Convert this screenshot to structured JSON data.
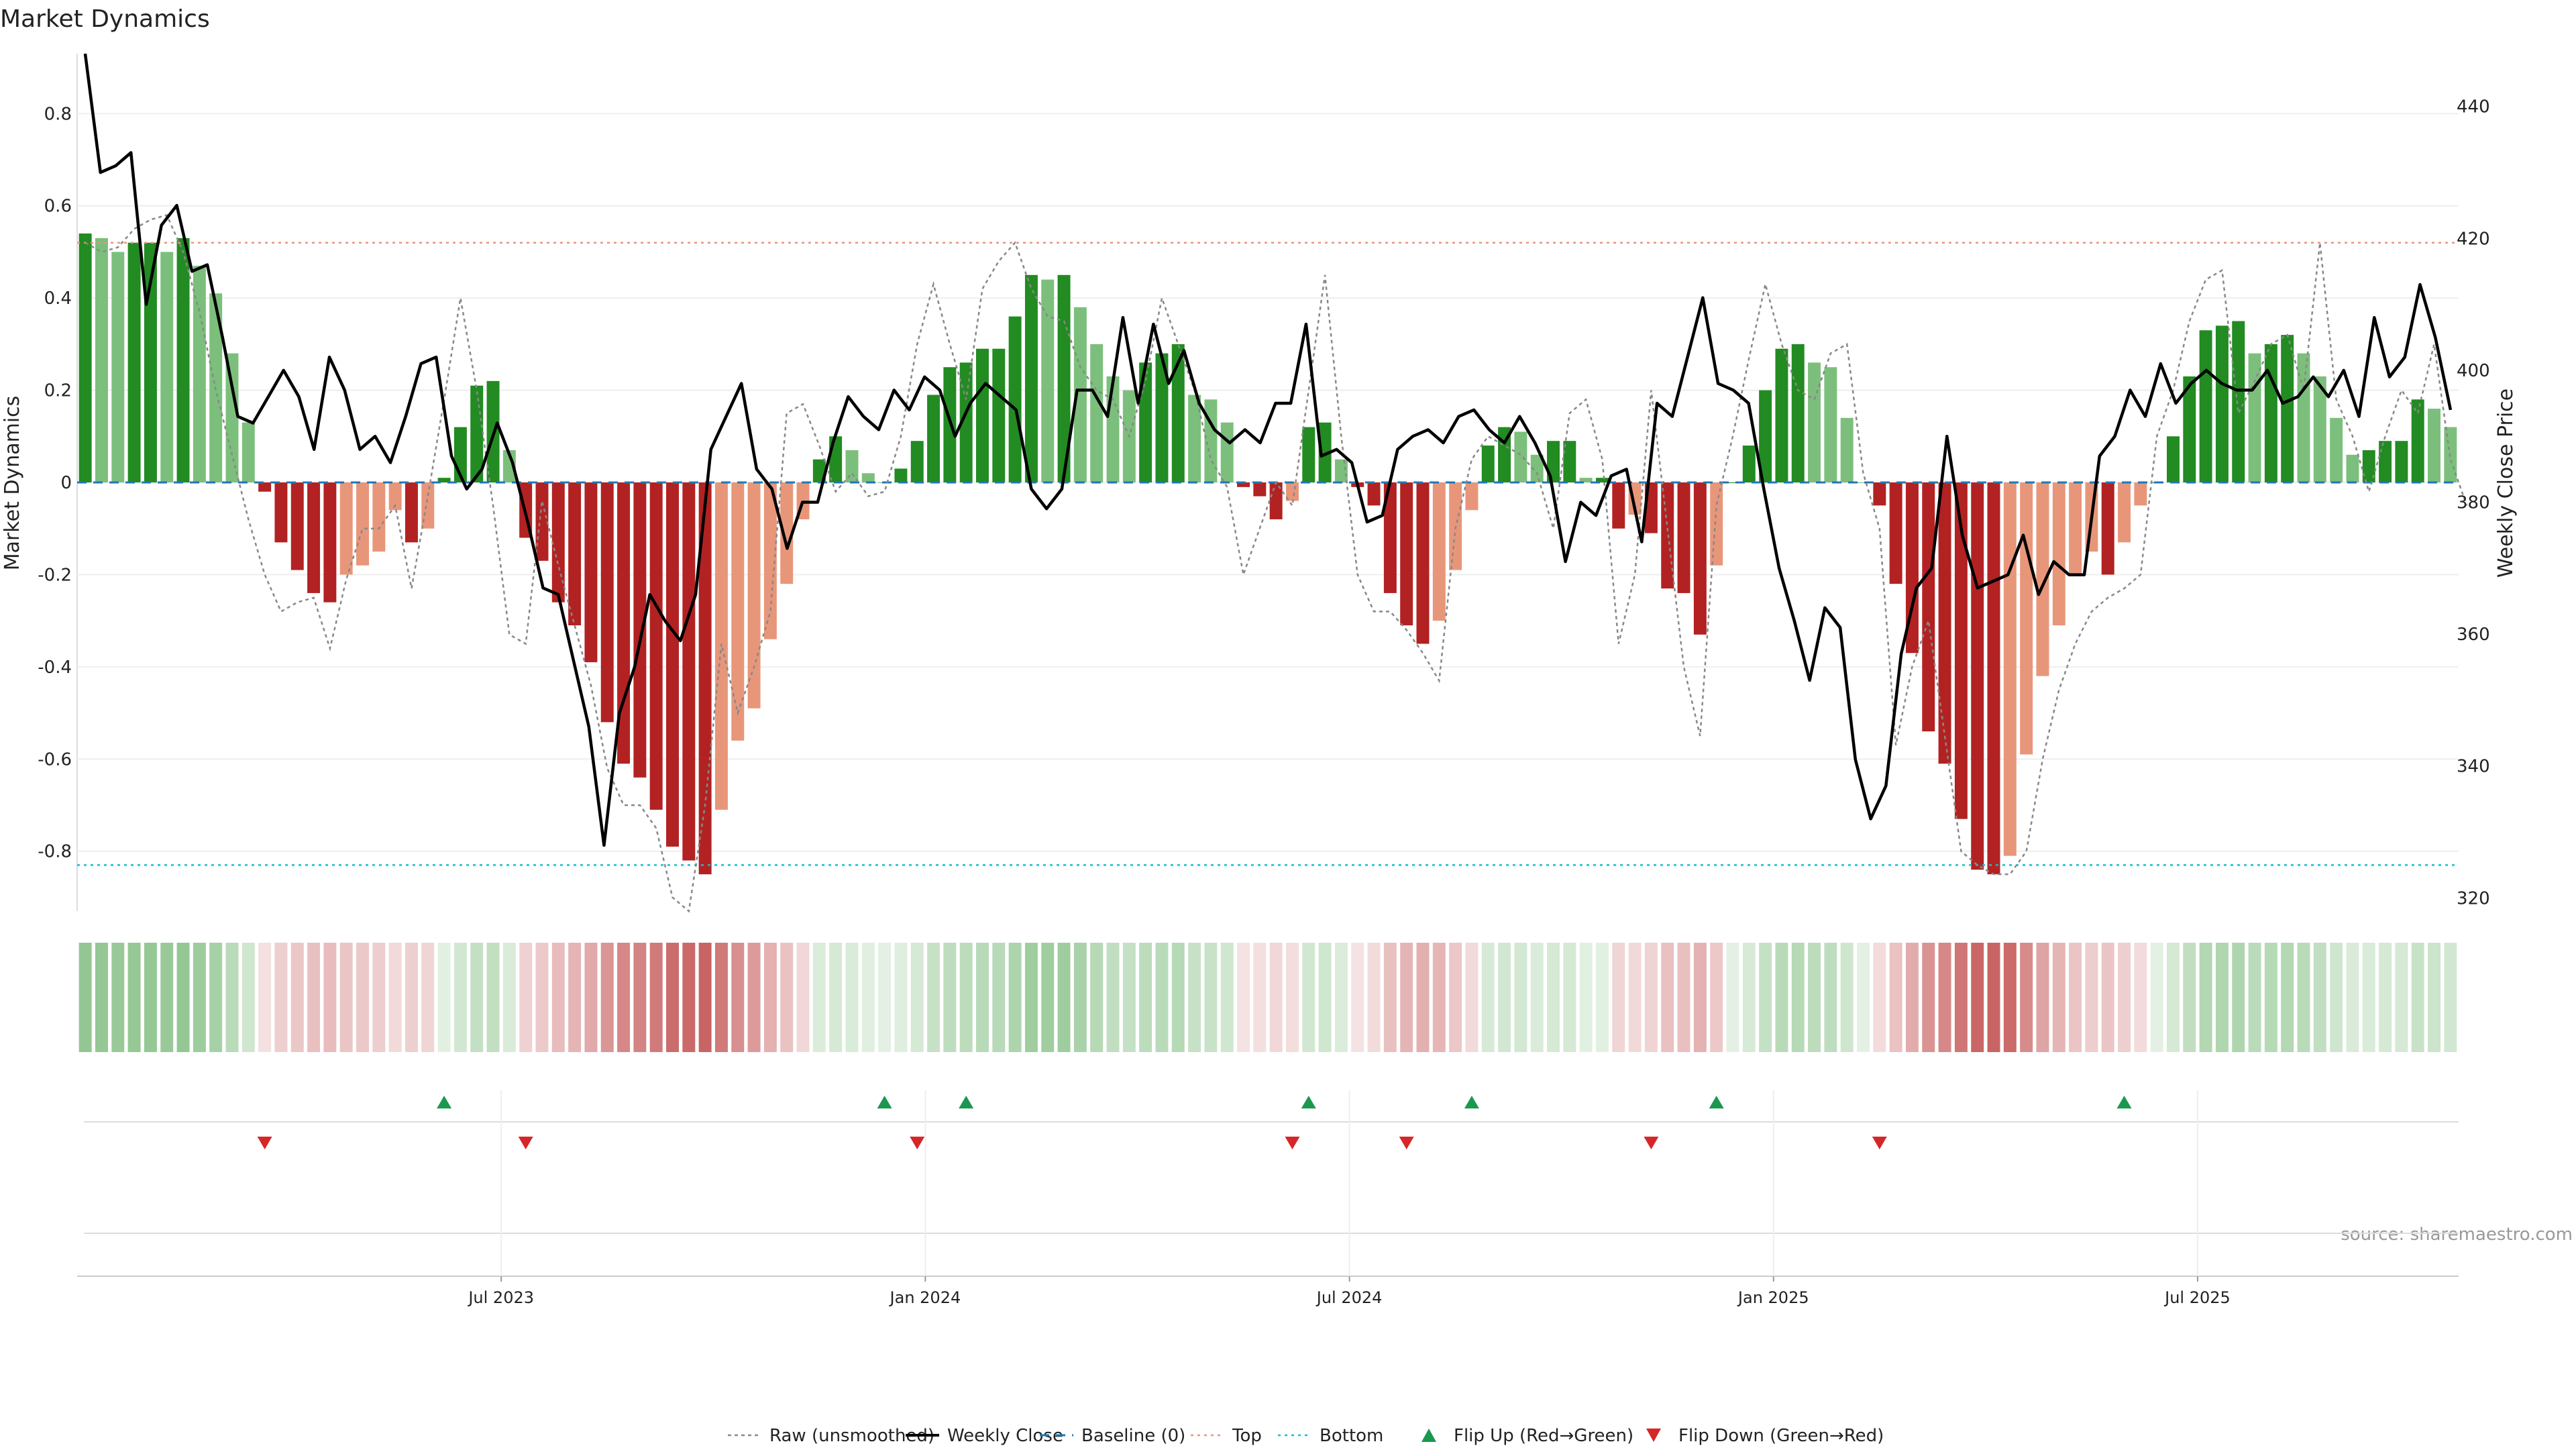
{
  "chart_data": {
    "type": "bar",
    "title": "Market Dynamics",
    "ylabel": "Market Dynamics",
    "y2label": "Weekly Close Price",
    "source": "source: sharemaestro.com",
    "ylim": [
      -0.93,
      0.93
    ],
    "y2lim": [
      318,
      448
    ],
    "yticks": [
      "0.8",
      "0.6",
      "0.4",
      "0.2",
      "0",
      "-0.2",
      "-0.4",
      "-0.6",
      "-0.8"
    ],
    "yticks_values": [
      0.8,
      0.6,
      0.4,
      0.2,
      0,
      -0.2,
      -0.4,
      -0.6,
      -0.8
    ],
    "y2ticks": [
      "440",
      "420",
      "400",
      "380",
      "360",
      "340",
      "320"
    ],
    "y2ticks_values": [
      440,
      420,
      400,
      380,
      360,
      340,
      320
    ],
    "xticks": [
      {
        "label": "Jul 2023",
        "week": 26
      },
      {
        "label": "Jan 2024",
        "week": 52
      },
      {
        "label": "Jul 2024",
        "week": 78
      },
      {
        "label": "Jan 2025",
        "week": 104
      },
      {
        "label": "Jul 2025",
        "week": 130
      }
    ],
    "top_threshold": 0.52,
    "bottom_threshold": -0.83,
    "bars": [
      0.54,
      0.53,
      0.5,
      0.52,
      0.52,
      0.5,
      0.53,
      0.47,
      0.41,
      0.28,
      0.13,
      -0.02,
      -0.13,
      -0.19,
      -0.24,
      -0.26,
      -0.2,
      -0.18,
      -0.15,
      -0.06,
      -0.13,
      -0.1,
      0.01,
      0.12,
      0.21,
      0.22,
      0.07,
      -0.12,
      -0.17,
      -0.26,
      -0.31,
      -0.39,
      -0.52,
      -0.61,
      -0.64,
      -0.71,
      -0.79,
      -0.82,
      -0.85,
      -0.71,
      -0.56,
      -0.49,
      -0.34,
      -0.22,
      -0.08,
      0.05,
      0.1,
      0.07,
      0.02,
      0,
      0.03,
      0.09,
      0.19,
      0.25,
      0.26,
      0.29,
      0.29,
      0.36,
      0.45,
      0.44,
      0.45,
      0.38,
      0.3,
      0.23,
      0.2,
      0.26,
      0.28,
      0.3,
      0.19,
      0.18,
      0.13,
      -0.01,
      -0.03,
      -0.08,
      -0.04,
      0.12,
      0.13,
      0.05,
      -0.01,
      -0.05,
      -0.24,
      -0.31,
      -0.35,
      -0.3,
      -0.19,
      -0.06,
      0.08,
      0.12,
      0.11,
      0.06,
      0.09,
      0.09,
      0.01,
      0.01,
      -0.1,
      -0.07,
      -0.11,
      -0.23,
      -0.24,
      -0.33,
      -0.18,
      0,
      0.08,
      0.2,
      0.29,
      0.3,
      0.26,
      0.25,
      0.14,
      0,
      -0.05,
      -0.22,
      -0.37,
      -0.54,
      -0.61,
      -0.73,
      -0.84,
      -0.85,
      -0.81,
      -0.59,
      -0.42,
      -0.31,
      -0.2,
      -0.15,
      -0.2,
      -0.13,
      -0.05,
      0,
      0.1,
      0.23,
      0.33,
      0.34,
      0.35,
      0.28,
      0.3,
      0.32,
      0.28,
      0.23,
      0.14,
      0.06,
      0.07,
      0.09,
      0.09,
      0.18,
      0.16,
      0.12
    ],
    "raw_series": [
      0.52,
      0.5,
      0.51,
      0.55,
      0.57,
      0.58,
      0.5,
      0.37,
      0.2,
      0.06,
      -0.08,
      -0.2,
      -0.28,
      -0.26,
      -0.25,
      -0.36,
      -0.21,
      -0.1,
      -0.1,
      -0.05,
      -0.23,
      -0.03,
      0.18,
      0.4,
      0.2,
      -0.05,
      -0.33,
      -0.35,
      -0.04,
      -0.18,
      -0.31,
      -0.44,
      -0.62,
      -0.7,
      -0.7,
      -0.75,
      -0.9,
      -0.93,
      -0.7,
      -0.35,
      -0.5,
      -0.4,
      -0.28,
      0.15,
      0.17,
      0.08,
      -0.02,
      0.02,
      -0.03,
      -0.02,
      0.1,
      0.3,
      0.43,
      0.3,
      0.18,
      0.42,
      0.48,
      0.52,
      0.42,
      0.36,
      0.35,
      0.25,
      0.2,
      0.18,
      0.1,
      0.22,
      0.4,
      0.3,
      0.2,
      0.05,
      -0.01,
      -0.2,
      -0.1,
      0.0,
      -0.05,
      0.2,
      0.45,
      0.1,
      -0.2,
      -0.28,
      -0.28,
      -0.32,
      -0.37,
      -0.43,
      -0.1,
      0.05,
      0.1,
      0.08,
      0.06,
      0.02,
      -0.1,
      0.15,
      0.18,
      0.05,
      -0.35,
      -0.2,
      0.2,
      -0.1,
      -0.4,
      -0.55,
      -0.05,
      0.1,
      0.27,
      0.43,
      0.3,
      0.2,
      0.18,
      0.28,
      0.3,
      0.02,
      -0.1,
      -0.57,
      -0.4,
      -0.3,
      -0.55,
      -0.8,
      -0.83,
      -0.85,
      -0.85,
      -0.8,
      -0.6,
      -0.45,
      -0.35,
      -0.28,
      -0.25,
      -0.23,
      -0.2,
      0.1,
      0.2,
      0.35,
      0.44,
      0.46,
      0.15,
      0.22,
      0.3,
      0.32,
      0.2,
      0.52,
      0.18,
      0.1,
      -0.02,
      0.1,
      0.2,
      0.15,
      0.3,
      0.05,
      -0.05
    ],
    "close_series": [
      448,
      430,
      431,
      433,
      410,
      422,
      425,
      415,
      416,
      405,
      393,
      392,
      396,
      400,
      396,
      388,
      402,
      397,
      388,
      390,
      386,
      393,
      401,
      402,
      387,
      382,
      385,
      392,
      386,
      377,
      367,
      366,
      356,
      346,
      328,
      348,
      355,
      366,
      362,
      359,
      366,
      388,
      393,
      398,
      385,
      382,
      373,
      380,
      380,
      389,
      396,
      393,
      391,
      397,
      394,
      399,
      397,
      390,
      395,
      398,
      396,
      394,
      382,
      379,
      382,
      397,
      397,
      393,
      408,
      395,
      407,
      398,
      403,
      395,
      391,
      389,
      391,
      389,
      395,
      395,
      407,
      387,
      388,
      386,
      377,
      378,
      388,
      390,
      391,
      389,
      393,
      394,
      391,
      389,
      393,
      389,
      384,
      371,
      380,
      378,
      384,
      385,
      374,
      395,
      393,
      402,
      411,
      398,
      397,
      395,
      382,
      370,
      362,
      353,
      364,
      361,
      341,
      332,
      337,
      357,
      367,
      370,
      390,
      375,
      367,
      368,
      369,
      375,
      366,
      371,
      369,
      369,
      387,
      390,
      397,
      393,
      401,
      395,
      398,
      400,
      398,
      397,
      397,
      400,
      395,
      396,
      399,
      396,
      400,
      393,
      408,
      399,
      402,
      413,
      405,
      394
    ],
    "flip_up_weeks": [
      22,
      49,
      54,
      75,
      85,
      100,
      125
    ],
    "flip_down_weeks": [
      11,
      27,
      51,
      74,
      81,
      96,
      110
    ],
    "legend": [
      {
        "key": "raw",
        "label": "Raw (unsmoothed)"
      },
      {
        "key": "weekly",
        "label": "Weekly Close"
      },
      {
        "key": "baseline",
        "label": "Baseline (0)"
      },
      {
        "key": "top",
        "label": "Top"
      },
      {
        "key": "bottom",
        "label": "Bottom"
      },
      {
        "key": "flip-up",
        "label": "Flip Up (Red→Green)"
      },
      {
        "key": "flip-down",
        "label": "Flip Down (Green→Red)"
      }
    ]
  },
  "colors": {
    "green_strong": "#228B22",
    "green_light": "#7CBF7C",
    "red_strong": "#B22222",
    "red_light": "#E8967A",
    "close_line": "#000000",
    "raw_line": "#888888",
    "baseline": "#1f77b4",
    "top_line": "#E8967A",
    "bottom_line": "#17BECF",
    "flip_up": "#1a9850",
    "flip_down": "#d62728"
  }
}
